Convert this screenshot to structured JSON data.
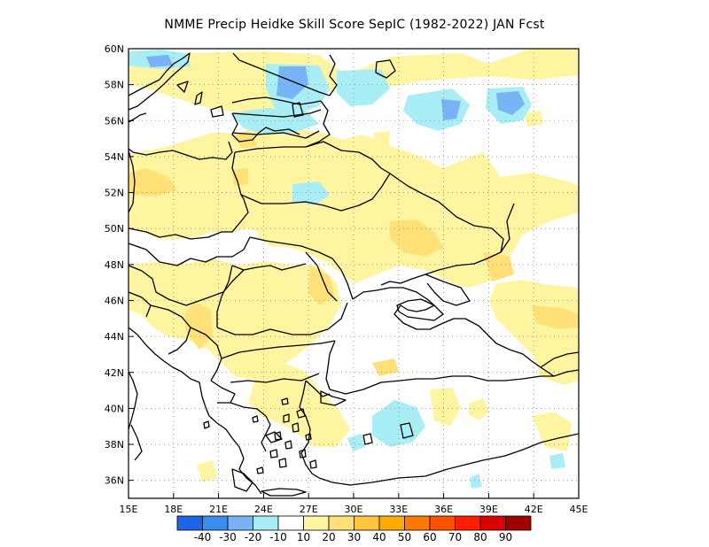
{
  "title": "NMME Precip Heidke Skill Score SepIC (1982-2022) JAN Fcst",
  "map": {
    "lon_range": [
      15,
      45
    ],
    "lat_range": [
      35,
      60
    ],
    "x_ticks": [
      "15E",
      "18E",
      "21E",
      "24E",
      "27E",
      "30E",
      "33E",
      "36E",
      "39E",
      "42E",
      "45E"
    ],
    "y_ticks": [
      "36N",
      "38N",
      "40N",
      "42N",
      "44N",
      "46N",
      "48N",
      "50N",
      "52N",
      "54N",
      "56N",
      "58N",
      "60N"
    ],
    "x_tick_values": [
      15,
      18,
      21,
      24,
      27,
      30,
      33,
      36,
      39,
      42,
      45
    ],
    "y_tick_values": [
      36,
      38,
      40,
      42,
      44,
      46,
      48,
      50,
      52,
      54,
      56,
      58,
      60
    ],
    "grid": true
  },
  "legend": {
    "boxes": [
      {
        "color": "#1e64e6"
      },
      {
        "color": "#3c8cf0"
      },
      {
        "color": "#78b4f5"
      },
      {
        "color": "#aaeef5"
      },
      {
        "color": "#ffffff"
      },
      {
        "color": "#fff5a0"
      },
      {
        "color": "#ffe178"
      },
      {
        "color": "#ffc83c"
      },
      {
        "color": "#ffaa00"
      },
      {
        "color": "#ff7800"
      },
      {
        "color": "#ff5000"
      },
      {
        "color": "#ff1e00"
      },
      {
        "color": "#dc0000"
      },
      {
        "color": "#a00000"
      }
    ],
    "labels": [
      "-40",
      "-30",
      "-20",
      "-10",
      "10",
      "20",
      "30",
      "40",
      "50",
      "60",
      "70",
      "80",
      "90"
    ]
  },
  "colors": {
    "skill_10_20": "#fff5a0",
    "skill_20_30": "#ffe178",
    "skill_neg_10_20": "#aaeef5",
    "skill_neg_20_30": "#78b4f5",
    "skill_neg_30_40": "#3c8cf0"
  }
}
